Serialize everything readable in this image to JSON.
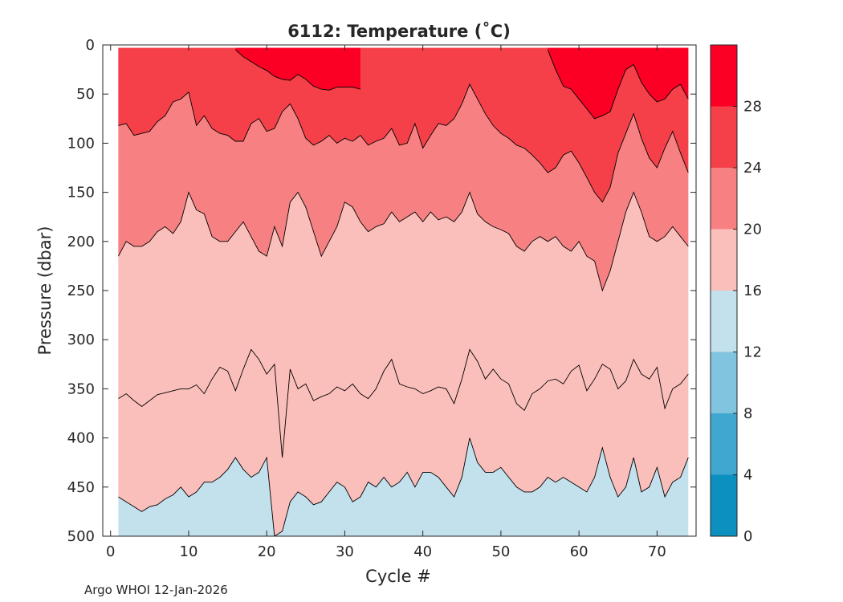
{
  "chart_data": {
    "type": "filled-contour",
    "title": "6112:  Temperature (˚C)",
    "xlabel": "Cycle #",
    "ylabel": "Pressure (dbar)",
    "xlim": [
      -1,
      75
    ],
    "ylim": [
      500,
      0
    ],
    "data_xrange": [
      1,
      74
    ],
    "xticks": [
      0,
      10,
      20,
      30,
      40,
      50,
      60,
      70
    ],
    "yticks": [
      0,
      50,
      100,
      150,
      200,
      250,
      300,
      350,
      400,
      450,
      500
    ],
    "colorbar": {
      "levels": [
        0,
        4,
        8,
        12,
        16,
        20,
        24,
        28,
        32
      ],
      "ticks": [
        0,
        4,
        8,
        12,
        16,
        20,
        24,
        28
      ],
      "colors": [
        "#0b90bf",
        "#40a8d0",
        "#80c4df",
        "#c2e1ed",
        "#fbbfbb",
        "#f78182",
        "#f5404a",
        "#fb0024"
      ]
    },
    "isotherms": [
      {
        "level": 28,
        "segments": [
          {
            "x": [
              16,
              17,
              18,
              19,
              20,
              21,
              22,
              23,
              24,
              25,
              26,
              27,
              28,
              29,
              30,
              31,
              32
            ],
            "y": [
              5,
              12,
              17,
              22,
              26,
              32,
              35,
              36,
              30,
              35,
              42,
              45,
              46,
              43,
              43,
              43,
              45
            ]
          },
          {
            "x": [
              56,
              57,
              58,
              59,
              60,
              61,
              62,
              63,
              64,
              65,
              66,
              67,
              68,
              69,
              70,
              71,
              72,
              73,
              74
            ],
            "y": [
              5,
              25,
              42,
              45,
              55,
              65,
              75,
              72,
              68,
              45,
              25,
              20,
              38,
              50,
              58,
              55,
              45,
              40,
              55
            ]
          }
        ]
      },
      {
        "level": 24,
        "x": [
          1,
          2,
          3,
          4,
          5,
          6,
          7,
          8,
          9,
          10,
          11,
          12,
          13,
          14,
          15,
          16,
          17,
          18,
          19,
          20,
          21,
          22,
          23,
          24,
          25,
          26,
          27,
          28,
          29,
          30,
          31,
          32,
          33,
          34,
          35,
          36,
          37,
          38,
          39,
          40,
          41,
          42,
          43,
          44,
          45,
          46,
          47,
          48,
          49,
          50,
          51,
          52,
          53,
          54,
          55,
          56,
          57,
          58,
          59,
          60,
          61,
          62,
          63,
          64,
          65,
          66,
          67,
          68,
          69,
          70,
          71,
          72,
          73,
          74
        ],
        "y": [
          82,
          80,
          92,
          90,
          88,
          78,
          72,
          58,
          55,
          48,
          82,
          72,
          85,
          90,
          92,
          98,
          98,
          80,
          75,
          88,
          85,
          68,
          60,
          75,
          95,
          102,
          98,
          92,
          100,
          95,
          98,
          92,
          102,
          98,
          95,
          85,
          102,
          100,
          80,
          105,
          92,
          80,
          82,
          75,
          60,
          40,
          55,
          70,
          82,
          90,
          95,
          102,
          105,
          112,
          120,
          130,
          125,
          112,
          108,
          120,
          135,
          150,
          160,
          145,
          110,
          90,
          70,
          95,
          115,
          125,
          105,
          88,
          110,
          130
        ]
      },
      {
        "level": 20,
        "x": [
          1,
          2,
          3,
          4,
          5,
          6,
          7,
          8,
          9,
          10,
          11,
          12,
          13,
          14,
          15,
          16,
          17,
          18,
          19,
          20,
          21,
          22,
          23,
          24,
          25,
          26,
          27,
          28,
          29,
          30,
          31,
          32,
          33,
          34,
          35,
          36,
          37,
          38,
          39,
          40,
          41,
          42,
          43,
          44,
          45,
          46,
          47,
          48,
          49,
          50,
          51,
          52,
          53,
          54,
          55,
          56,
          57,
          58,
          59,
          60,
          61,
          62,
          63,
          64,
          65,
          66,
          67,
          68,
          69,
          70,
          71,
          72,
          73,
          74
        ],
        "y": [
          215,
          200,
          205,
          205,
          200,
          190,
          185,
          192,
          180,
          150,
          168,
          172,
          195,
          200,
          200,
          190,
          180,
          195,
          210,
          215,
          185,
          205,
          160,
          150,
          165,
          190,
          215,
          200,
          185,
          160,
          165,
          180,
          190,
          185,
          182,
          170,
          180,
          175,
          170,
          180,
          170,
          178,
          175,
          180,
          170,
          150,
          172,
          180,
          185,
          188,
          192,
          205,
          210,
          200,
          195,
          200,
          195,
          205,
          210,
          200,
          215,
          220,
          250,
          230,
          200,
          170,
          150,
          170,
          195,
          200,
          195,
          185,
          195,
          205
        ]
      },
      {
        "level": 16,
        "x": [
          1,
          2,
          3,
          4,
          5,
          6,
          7,
          8,
          9,
          10,
          11,
          12,
          13,
          14,
          15,
          16,
          17,
          18,
          19,
          20,
          21,
          22,
          23,
          24,
          25,
          26,
          27,
          28,
          29,
          30,
          31,
          32,
          33,
          34,
          35,
          36,
          37,
          38,
          39,
          40,
          41,
          42,
          43,
          44,
          45,
          46,
          47,
          48,
          49,
          50,
          51,
          52,
          53,
          54,
          55,
          56,
          57,
          58,
          59,
          60,
          61,
          62,
          63,
          64,
          65,
          66,
          67,
          68,
          69,
          70,
          71,
          72,
          73,
          74
        ],
        "y": [
          460,
          465,
          470,
          475,
          470,
          468,
          462,
          458,
          450,
          460,
          455,
          445,
          445,
          440,
          432,
          420,
          432,
          440,
          435,
          420,
          500,
          495,
          465,
          455,
          460,
          468,
          465,
          455,
          445,
          450,
          465,
          460,
          445,
          450,
          440,
          450,
          445,
          435,
          450,
          435,
          435,
          440,
          450,
          460,
          440,
          400,
          425,
          435,
          435,
          430,
          440,
          450,
          455,
          455,
          450,
          440,
          445,
          440,
          445,
          450,
          455,
          440,
          410,
          440,
          460,
          450,
          420,
          455,
          450,
          430,
          460,
          445,
          440,
          420
        ]
      },
      {
        "level": 16,
        "x": [
          1,
          2,
          3,
          4,
          5,
          6,
          7,
          8,
          9,
          10,
          11,
          12,
          13,
          14,
          15,
          16,
          17,
          18,
          19,
          20,
          21,
          22,
          23,
          24,
          25,
          26,
          27,
          28,
          29,
          30,
          31,
          32,
          33,
          34,
          35,
          36,
          37,
          38,
          39,
          40,
          41,
          42,
          43,
          44,
          45,
          46,
          47,
          48,
          49,
          50,
          51,
          52,
          53,
          54,
          55,
          56,
          57,
          58,
          59,
          60,
          61,
          62,
          63,
          64,
          65,
          66,
          67,
          68,
          69,
          70,
          71,
          72,
          73,
          74
        ],
        "y": [
          360,
          355,
          362,
          368,
          362,
          356,
          354,
          352,
          350,
          350,
          346,
          355,
          340,
          328,
          332,
          352,
          330,
          310,
          320,
          335,
          325,
          420,
          330,
          350,
          345,
          362,
          358,
          355,
          348,
          352,
          345,
          355,
          360,
          350,
          332,
          320,
          345,
          348,
          350,
          355,
          352,
          348,
          350,
          365,
          340,
          310,
          322,
          340,
          330,
          340,
          345,
          365,
          372,
          355,
          350,
          342,
          340,
          345,
          332,
          326,
          352,
          340,
          325,
          330,
          350,
          342,
          320,
          335,
          340,
          328,
          370,
          350,
          345,
          335
        ]
      }
    ],
    "credit": "Argo WHOI 12-Jan-2026"
  }
}
